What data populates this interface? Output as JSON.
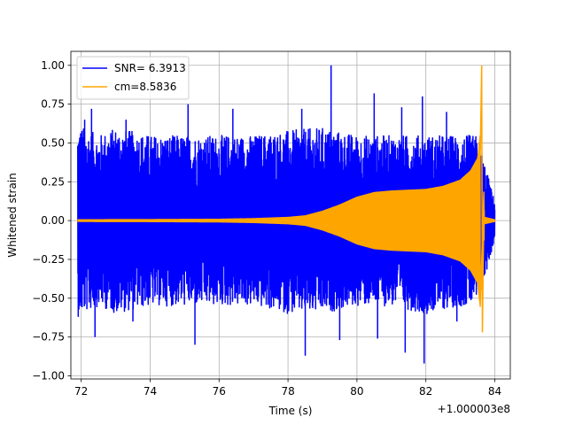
{
  "chart_data": {
    "type": "line",
    "title": "",
    "xlabel": "Time (s)",
    "ylabel": "Whitened strain",
    "x_offset_label": "+1.000003e8",
    "xlim": [
      71.7,
      84.45
    ],
    "ylim": [
      -1.02,
      1.09
    ],
    "x_ticks": [
      72,
      74,
      76,
      78,
      80,
      82,
      84
    ],
    "x_tick_labels": [
      "72",
      "74",
      "76",
      "78",
      "80",
      "82",
      "84"
    ],
    "y_ticks": [
      -1.0,
      -0.75,
      -0.5,
      -0.25,
      0.0,
      0.25,
      0.5,
      0.75,
      1.0
    ],
    "y_tick_labels": [
      "−1.00",
      "−0.75",
      "−0.50",
      "−0.25",
      "0.00",
      "0.25",
      "0.50",
      "0.75",
      "1.00"
    ],
    "grid": true,
    "legend_position": "top-left",
    "series": [
      {
        "name": "SNR= 6.3913",
        "color": "#0000ff",
        "x_range": [
          71.9,
          84.0
        ],
        "envelope_upper": [
          [
            71.9,
            0.62
          ],
          [
            72.5,
            0.55
          ],
          [
            73.0,
            0.6
          ],
          [
            74.0,
            0.55
          ],
          [
            75.0,
            0.55
          ],
          [
            76.0,
            0.55
          ],
          [
            77.0,
            0.55
          ],
          [
            78.0,
            0.58
          ],
          [
            79.0,
            0.6
          ],
          [
            80.0,
            0.55
          ],
          [
            81.0,
            0.55
          ],
          [
            82.0,
            0.55
          ],
          [
            83.0,
            0.55
          ],
          [
            83.5,
            0.55
          ],
          [
            84.0,
            0.12
          ]
        ],
        "envelope_lower": [
          [
            71.9,
            -0.62
          ],
          [
            72.5,
            -0.55
          ],
          [
            73.0,
            -0.6
          ],
          [
            74.0,
            -0.55
          ],
          [
            75.0,
            -0.55
          ],
          [
            76.0,
            -0.55
          ],
          [
            77.0,
            -0.55
          ],
          [
            78.0,
            -0.6
          ],
          [
            79.0,
            -0.6
          ],
          [
            80.0,
            -0.55
          ],
          [
            81.0,
            -0.55
          ],
          [
            82.0,
            -0.6
          ],
          [
            83.0,
            -0.55
          ],
          [
            83.5,
            -0.55
          ],
          [
            84.0,
            -0.12
          ]
        ],
        "spikes": [
          [
            72.1,
            0.65
          ],
          [
            72.3,
            0.72
          ],
          [
            72.4,
            -0.75
          ],
          [
            73.3,
            0.65
          ],
          [
            73.5,
            -0.65
          ],
          [
            75.1,
            0.75
          ],
          [
            75.3,
            -0.8
          ],
          [
            76.4,
            0.72
          ],
          [
            78.4,
            0.72
          ],
          [
            78.5,
            -0.87
          ],
          [
            79.25,
            1.0
          ],
          [
            79.5,
            -0.77
          ],
          [
            80.5,
            0.82
          ],
          [
            80.6,
            -0.76
          ],
          [
            81.3,
            0.73
          ],
          [
            81.4,
            -0.85
          ],
          [
            81.9,
            0.8
          ],
          [
            81.95,
            -0.92
          ],
          [
            82.6,
            0.7
          ],
          [
            82.9,
            -0.65
          ]
        ]
      },
      {
        "name": "cm=8.5836",
        "color": "#ffa500",
        "x_range": [
          71.9,
          84.0
        ],
        "envelope": [
          [
            71.9,
            0.005
          ],
          [
            74.0,
            0.006
          ],
          [
            76.0,
            0.008
          ],
          [
            77.0,
            0.012
          ],
          [
            78.0,
            0.02
          ],
          [
            78.5,
            0.03
          ],
          [
            79.0,
            0.06
          ],
          [
            79.5,
            0.1
          ],
          [
            80.0,
            0.15
          ],
          [
            80.5,
            0.18
          ],
          [
            81.0,
            0.19
          ],
          [
            82.0,
            0.2
          ],
          [
            82.5,
            0.22
          ],
          [
            83.0,
            0.26
          ],
          [
            83.3,
            0.32
          ],
          [
            83.5,
            0.4
          ],
          [
            83.6,
            0.6
          ],
          [
            83.62,
            1.0
          ],
          [
            83.64,
            -0.72
          ],
          [
            83.7,
            0.02
          ],
          [
            84.0,
            0.005
          ]
        ],
        "peak": [
          83.62,
          1.0
        ],
        "trough": [
          83.64,
          -0.72
        ]
      }
    ]
  }
}
